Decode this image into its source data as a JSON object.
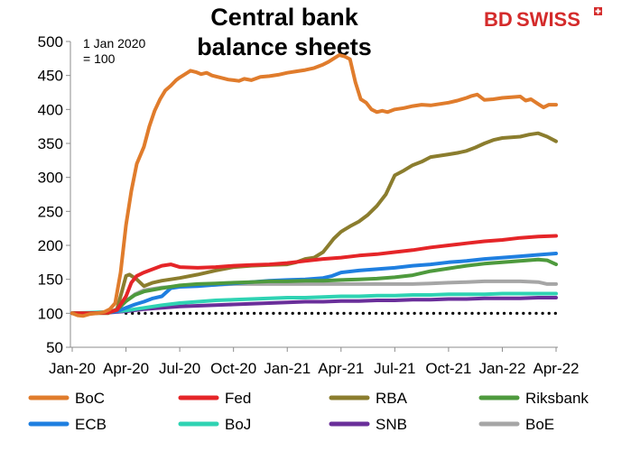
{
  "logo": {
    "prefix": "BD",
    "suffix": "SWISS",
    "mark": "logo-mark"
  },
  "chart_data": {
    "type": "line",
    "title_lines": [
      "Central bank",
      "balance sheets"
    ],
    "note_lines": [
      "1 Jan 2020",
      "= 100"
    ],
    "xlabel": "",
    "ylabel": "",
    "ylim": [
      50,
      500
    ],
    "yticks": [
      50,
      100,
      150,
      200,
      250,
      300,
      350,
      400,
      450,
      500
    ],
    "x_tick_labels": [
      "Jan-20",
      "Apr-20",
      "Jul-20",
      "Oct-20",
      "Jan-21",
      "Apr-21",
      "Jul-21",
      "Oct-21",
      "Jan-22",
      "Apr-22"
    ],
    "x_tick_months": [
      0,
      3,
      6,
      9,
      12,
      15,
      18,
      21,
      24,
      27
    ],
    "x_range_months": [
      0,
      27.1
    ],
    "baseline": {
      "value": 100,
      "style": "dotted",
      "color": "#000000"
    },
    "legend_position": "bottom",
    "series": [
      {
        "name": "BoC",
        "color": "#e07c2c",
        "x": [
          0,
          0.3,
          0.6,
          1.0,
          1.4,
          1.8,
          2.1,
          2.4,
          2.7,
          3.0,
          3.3,
          3.6,
          4.0,
          4.3,
          4.6,
          4.9,
          5.2,
          5.5,
          5.8,
          6.0,
          6.3,
          6.6,
          6.9,
          7.2,
          7.5,
          7.8,
          8.1,
          8.4,
          8.7,
          9.0,
          9.3,
          9.6,
          10.0,
          10.5,
          11.0,
          11.5,
          12.0,
          12.5,
          13.0,
          13.5,
          14.0,
          14.3,
          14.6,
          14.9,
          15.2,
          15.5,
          15.8,
          16.1,
          16.4,
          16.7,
          17.0,
          17.3,
          17.6,
          18.0,
          18.5,
          19.0,
          19.5,
          20.0,
          20.5,
          21.0,
          21.5,
          22.0,
          22.3,
          22.6,
          23.0,
          23.5,
          24.0,
          24.5,
          25.0,
          25.3,
          25.6,
          26.0,
          26.3,
          26.6,
          27.0
        ],
        "values": [
          100,
          97,
          96,
          99,
          100,
          102,
          106,
          115,
          160,
          230,
          280,
          320,
          345,
          375,
          398,
          415,
          428,
          435,
          443,
          447,
          452,
          457,
          455,
          452,
          454,
          450,
          448,
          446,
          444,
          443,
          442,
          445,
          443,
          448,
          449,
          451,
          454,
          456,
          458,
          461,
          466,
          470,
          475,
          480,
          478,
          474,
          440,
          415,
          410,
          400,
          396,
          398,
          396,
          400,
          402,
          405,
          407,
          406,
          408,
          410,
          413,
          417,
          420,
          422,
          414,
          415,
          417,
          418,
          419,
          413,
          415,
          408,
          403,
          407,
          407
        ]
      },
      {
        "name": "Fed",
        "color": "#e52528",
        "x": [
          0,
          1.0,
          2.0,
          2.5,
          3.0,
          3.3,
          3.6,
          4.0,
          4.5,
          5.0,
          5.5,
          6.0,
          7.0,
          8.0,
          9.0,
          10.0,
          11.0,
          12.0,
          13.0,
          14.0,
          15.0,
          16.0,
          17.0,
          18.0,
          19.0,
          20.0,
          21.0,
          22.0,
          23.0,
          24.0,
          25.0,
          26.0,
          27.0
        ],
        "values": [
          100,
          100,
          101,
          105,
          125,
          145,
          155,
          160,
          165,
          170,
          172,
          168,
          167,
          168,
          170,
          171,
          172,
          174,
          177,
          180,
          182,
          185,
          187,
          190,
          193,
          197,
          200,
          203,
          206,
          208,
          211,
          213,
          214
        ]
      },
      {
        "name": "RBA",
        "color": "#8b7d2e",
        "x": [
          0,
          1.0,
          2.0,
          2.5,
          2.8,
          3.0,
          3.2,
          3.6,
          4.0,
          4.5,
          5.0,
          6.0,
          7.0,
          8.0,
          9.0,
          10.0,
          11.0,
          12.0,
          12.5,
          13.0,
          13.5,
          14.0,
          14.3,
          14.6,
          15.0,
          15.5,
          16.0,
          16.5,
          17.0,
          17.5,
          18.0,
          18.5,
          19.0,
          19.5,
          20.0,
          20.5,
          21.0,
          21.5,
          22.0,
          22.5,
          23.0,
          23.5,
          24.0,
          24.5,
          25.0,
          25.5,
          26.0,
          26.5,
          27.0
        ],
        "values": [
          100,
          100,
          100,
          106,
          135,
          155,
          157,
          150,
          140,
          145,
          148,
          152,
          157,
          163,
          168,
          170,
          171,
          172,
          175,
          180,
          182,
          190,
          200,
          210,
          220,
          228,
          235,
          245,
          258,
          275,
          303,
          310,
          318,
          323,
          330,
          332,
          334,
          336,
          339,
          344,
          350,
          355,
          358,
          359,
          360,
          363,
          365,
          360,
          353
        ]
      },
      {
        "name": "Riksbank",
        "color": "#4e9a3d",
        "x": [
          0,
          1.0,
          2.0,
          2.5,
          3.0,
          3.5,
          4.0,
          5.0,
          6.0,
          7.0,
          8.0,
          9.0,
          10.0,
          11.0,
          12.0,
          13.0,
          14.0,
          15.0,
          16.0,
          17.0,
          18.0,
          19.0,
          20.0,
          21.0,
          22.0,
          23.0,
          24.0,
          25.0,
          26.0,
          26.5,
          27.0
        ],
        "values": [
          100,
          100,
          101,
          105,
          118,
          127,
          132,
          137,
          141,
          143,
          144,
          145,
          146,
          147,
          147,
          148,
          148,
          149,
          150,
          151,
          153,
          156,
          162,
          166,
          170,
          173,
          175,
          177,
          179,
          178,
          172
        ]
      },
      {
        "name": "ECB",
        "color": "#1f7fe0",
        "x": [
          0,
          1.0,
          2.0,
          2.5,
          3.0,
          3.5,
          4.0,
          4.5,
          5.0,
          5.5,
          6.0,
          7.0,
          8.0,
          9.0,
          10.0,
          11.0,
          12.0,
          13.0,
          14.0,
          14.5,
          15.0,
          16.0,
          17.0,
          18.0,
          19.0,
          20.0,
          21.0,
          22.0,
          23.0,
          24.0,
          25.0,
          26.0,
          27.0
        ],
        "values": [
          100,
          100,
          101,
          103,
          108,
          113,
          117,
          122,
          125,
          137,
          139,
          140,
          142,
          144,
          146,
          148,
          149,
          150,
          152,
          155,
          160,
          163,
          165,
          167,
          170,
          172,
          175,
          177,
          180,
          182,
          184,
          186,
          188
        ]
      },
      {
        "name": "BoJ",
        "color": "#2fd3b3",
        "x": [
          0,
          1.0,
          2.0,
          3.0,
          4.0,
          5.0,
          6.0,
          7.0,
          8.0,
          9.0,
          10.0,
          11.0,
          12.0,
          13.0,
          14.0,
          15.0,
          16.0,
          17.0,
          18.0,
          19.0,
          20.0,
          21.0,
          22.0,
          23.0,
          24.0,
          25.0,
          26.0,
          27.0
        ],
        "values": [
          100,
          101,
          102,
          104,
          108,
          112,
          115,
          117,
          119,
          120,
          121,
          122,
          123,
          123,
          124,
          125,
          125,
          126,
          126,
          127,
          127,
          128,
          128,
          128,
          129,
          129,
          129,
          129
        ]
      },
      {
        "name": "SNB",
        "color": "#6a2f9a",
        "x": [
          0,
          1.0,
          2.0,
          3.0,
          4.0,
          5.0,
          6.0,
          7.0,
          8.0,
          9.0,
          10.0,
          11.0,
          12.0,
          13.0,
          14.0,
          15.0,
          16.0,
          17.0,
          18.0,
          19.0,
          20.0,
          21.0,
          22.0,
          23.0,
          24.0,
          25.0,
          26.0,
          27.0
        ],
        "values": [
          100,
          100,
          101,
          103,
          106,
          108,
          110,
          111,
          112,
          113,
          114,
          115,
          116,
          117,
          117,
          118,
          118,
          119,
          119,
          120,
          120,
          121,
          121,
          122,
          122,
          122,
          123,
          123
        ]
      },
      {
        "name": "BoE",
        "color": "#a6a6a6",
        "x": [
          0,
          1.0,
          2.0,
          2.5,
          3.0,
          3.5,
          4.0,
          5.0,
          6.0,
          7.0,
          8.0,
          9.0,
          10.0,
          11.0,
          12.0,
          13.0,
          14.0,
          15.0,
          16.0,
          17.0,
          18.0,
          19.0,
          20.0,
          21.0,
          22.0,
          23.0,
          24.0,
          25.0,
          26.0,
          26.5,
          27.0
        ],
        "values": [
          100,
          100,
          101,
          106,
          118,
          128,
          134,
          138,
          140,
          141,
          142,
          143,
          143,
          143,
          143,
          143,
          143,
          143,
          143,
          143,
          143,
          143,
          144,
          145,
          146,
          147,
          147,
          147,
          146,
          143,
          143
        ]
      }
    ]
  }
}
